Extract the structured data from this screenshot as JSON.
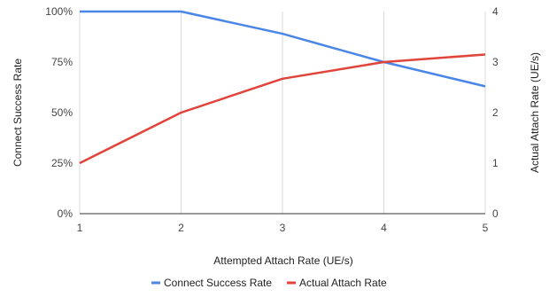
{
  "chart_data": {
    "type": "line",
    "x": [
      1,
      2,
      3,
      4,
      5
    ],
    "xlabel": "Attempted Attach Rate (UE/s)",
    "ylabel_left": "Connect Success Rate",
    "ylabel_right": "Actual Attach Rate (UE/s)",
    "xlim": [
      1,
      5
    ],
    "ylim_left": [
      0,
      1
    ],
    "ylim_right": [
      0,
      4
    ],
    "xticks": [
      "1",
      "2",
      "3",
      "4",
      "5"
    ],
    "yticks_left": [
      "0%",
      "25%",
      "50%",
      "75%",
      "100%"
    ],
    "yticks_right": [
      "0",
      "1",
      "2",
      "3",
      "4"
    ],
    "grid": "vertical",
    "legend_position": "bottom",
    "series": [
      {
        "name": "Connect Success Rate",
        "axis": "left",
        "color": "#4a86e8",
        "values": [
          1.0,
          1.0,
          0.89,
          0.75,
          0.63
        ]
      },
      {
        "name": "Actual Attach Rate",
        "axis": "right",
        "color": "#e0443a",
        "values": [
          1.0,
          2.0,
          2.67,
          3.0,
          3.15
        ]
      }
    ]
  }
}
